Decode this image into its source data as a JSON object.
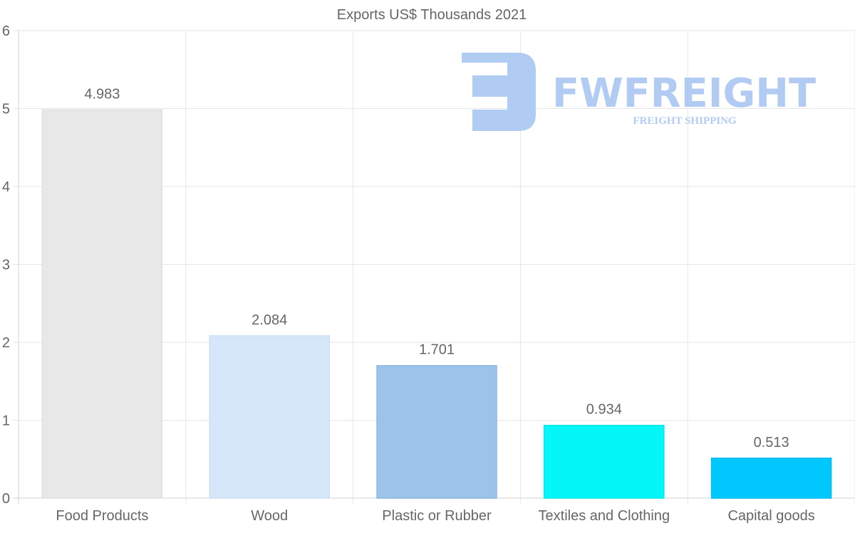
{
  "chart_data": {
    "type": "bar",
    "title": "Exports US$ Thousands 2021",
    "xlabel": "",
    "ylabel": "",
    "categories": [
      "Food Products",
      "Wood",
      "Plastic or Rubber",
      "Textiles and Clothing",
      "Capital goods"
    ],
    "values": [
      4.983,
      2.084,
      1.701,
      0.934,
      0.513
    ],
    "data_labels": [
      "4.983",
      "2.084",
      "1.701",
      "0.934",
      "0.513"
    ],
    "colors": [
      "#e8e8e8",
      "#d6e7f9",
      "#9cc3e9",
      "#03f6f8",
      "#00c8fe"
    ],
    "border_colors": [
      "#e0e0e0",
      "#cde0f4",
      "#8fb8e2",
      "#00e8ee",
      "#00bcf0"
    ],
    "ylim": [
      0,
      6
    ],
    "yticks": [
      0,
      1,
      2,
      3,
      4,
      5,
      6
    ],
    "grid": true,
    "legend": "none"
  },
  "watermark": {
    "brand": "FWFREIGHT",
    "tagline": "FREIGHT SHIPPING",
    "color": "#a9c6f2"
  }
}
